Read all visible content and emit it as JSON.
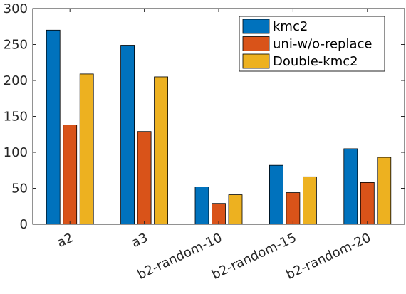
{
  "chart_data": {
    "type": "bar",
    "title": "",
    "xlabel": "",
    "ylabel": "",
    "categories": [
      "a2",
      "a3",
      "b2-random-10",
      "b2-random-15",
      "b2-random-20"
    ],
    "series": [
      {
        "name": "kmc2",
        "color": "#0072BD",
        "values": [
          270,
          249,
          52,
          82,
          105
        ]
      },
      {
        "name": "uni-w/o-replace",
        "color": "#D95319",
        "values": [
          138,
          129,
          29,
          44,
          58
        ]
      },
      {
        "name": "Double-kmc2",
        "color": "#EDB120",
        "values": [
          209,
          205,
          41,
          66,
          93
        ]
      }
    ],
    "ylim": [
      0,
      300
    ],
    "yticks": [
      0,
      50,
      100,
      150,
      200,
      250,
      300
    ],
    "legend": "top-right",
    "grid": false
  }
}
